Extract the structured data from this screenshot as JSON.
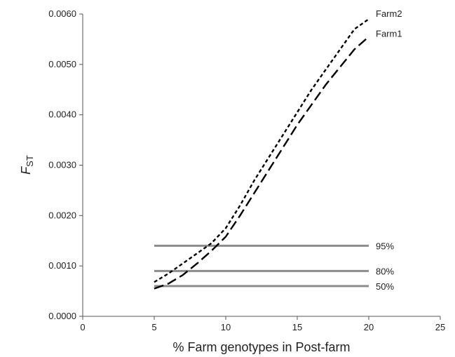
{
  "chart_data": {
    "type": "line",
    "title": "",
    "xlabel": "% Farm genotypes in Post-farm",
    "ylabel": {
      "main": "F",
      "sub": "ST"
    },
    "xlim": [
      0,
      25
    ],
    "ylim": [
      0,
      0.006
    ],
    "x_ticks": [
      0,
      5,
      10,
      15,
      20,
      25
    ],
    "x_tick_labels": [
      "0",
      "5",
      "10",
      "15",
      "20",
      "25"
    ],
    "y_ticks": [
      0,
      0.001,
      0.002,
      0.003,
      0.004,
      0.005,
      0.006
    ],
    "y_tick_labels": [
      "0.0000",
      "0.0010",
      "0.0020",
      "0.0030",
      "0.0040",
      "0.0050",
      "0.0060"
    ],
    "grid": false,
    "legend": "labels at line ends",
    "series": [
      {
        "name": "Farm2",
        "dash": "short-dash",
        "color": "#000000",
        "x": [
          5,
          6,
          7,
          8,
          9,
          10,
          11,
          12,
          13,
          14,
          15,
          16,
          17,
          18,
          19,
          20
        ],
        "y": [
          0.00068,
          0.00085,
          0.00105,
          0.00125,
          0.00145,
          0.00175,
          0.0022,
          0.0027,
          0.00315,
          0.0036,
          0.00405,
          0.0045,
          0.0049,
          0.0053,
          0.0057,
          0.0059
        ]
      },
      {
        "name": "Farm1",
        "dash": "long-dash",
        "color": "#000000",
        "x": [
          5,
          6,
          7,
          8,
          9,
          10,
          11,
          12,
          13,
          14,
          15,
          16,
          17,
          18,
          19,
          20
        ],
        "y": [
          0.00055,
          0.00065,
          0.00082,
          0.00105,
          0.0013,
          0.00158,
          0.002,
          0.00245,
          0.0029,
          0.00335,
          0.0038,
          0.0042,
          0.0046,
          0.00495,
          0.0053,
          0.00555
        ]
      }
    ],
    "reference_lines": [
      {
        "label": "95%",
        "y": 0.0014,
        "x_start": 5,
        "x_end": 20,
        "color": "#8c8c8c"
      },
      {
        "label": "80%",
        "y": 0.0009,
        "x_start": 5,
        "x_end": 20,
        "color": "#8c8c8c"
      },
      {
        "label": "50%",
        "y": 0.0006,
        "x_start": 5,
        "x_end": 20,
        "color": "#8c8c8c"
      }
    ]
  }
}
